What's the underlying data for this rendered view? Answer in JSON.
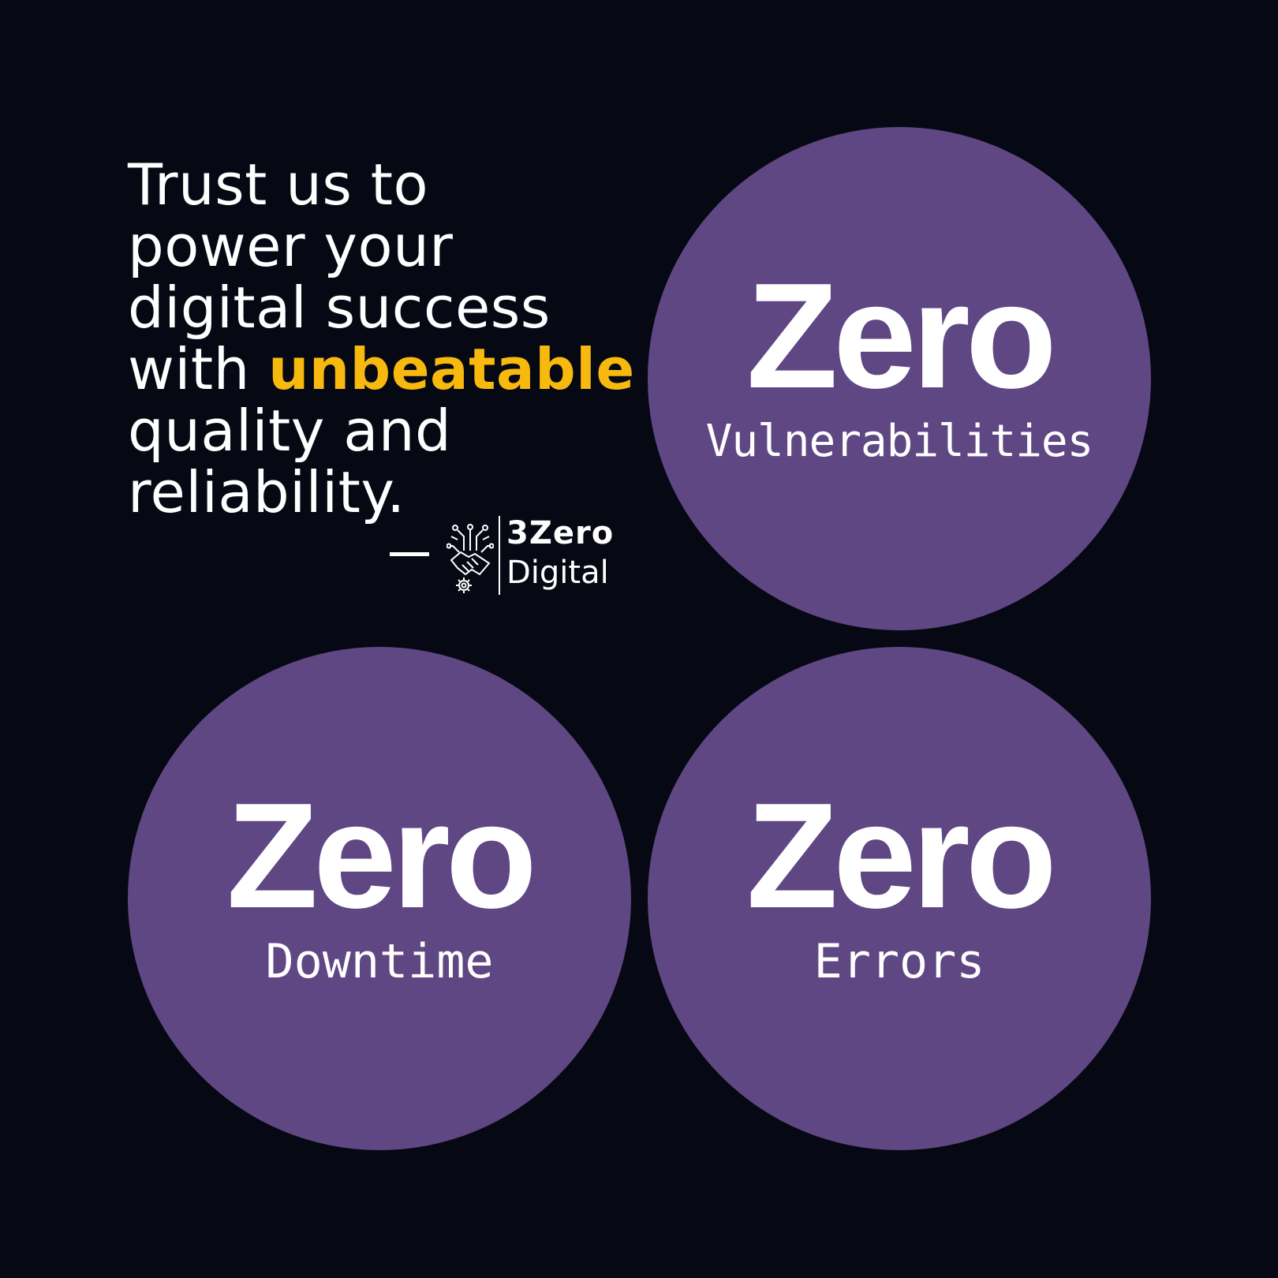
{
  "quote": {
    "lines": [
      "Trust us to",
      "power your",
      "digital success"
    ],
    "line4_prefix": "with ",
    "highlight": "unbeatable",
    "lines_after": [
      "quality and",
      "reliability."
    ]
  },
  "logo": {
    "top": "3Zero",
    "bottom": "Digital",
    "icon": "circuit-handshake-gear-icon"
  },
  "circles": [
    {
      "big": "Zero",
      "small": "Vulnerabilities"
    },
    {
      "big": "Zero",
      "small": "Downtime"
    },
    {
      "big": "Zero",
      "small": "Errors"
    }
  ],
  "colors": {
    "background": "#060813",
    "circle": "#5f4784",
    "highlight": "#f7b90d",
    "text": "#ffffff"
  }
}
